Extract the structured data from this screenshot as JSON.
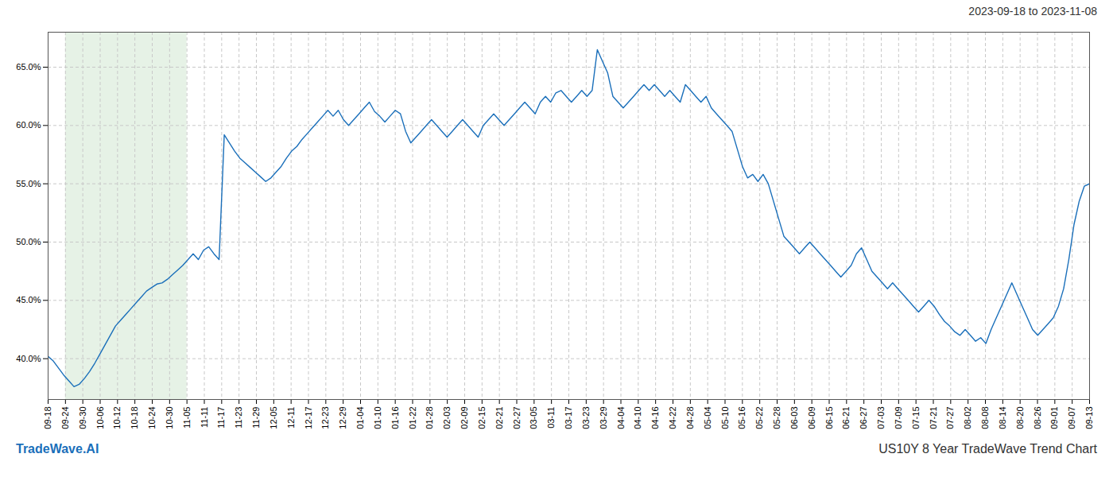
{
  "chart_data": {
    "type": "line",
    "title": "2023-09-18 to 2023-11-08",
    "footer_left": "TradeWave.AI",
    "footer_right": "US10Y 8 Year TradeWave Trend Chart",
    "color": "#1a6fba",
    "grid": true,
    "xlim": [
      0,
      201
    ],
    "xticks": [
      {
        "value": 0,
        "label": "09-18"
      },
      {
        "value": 3.35,
        "label": "09-24"
      },
      {
        "value": 6.7,
        "label": "09-30"
      },
      {
        "value": 10.05,
        "label": "10-06"
      },
      {
        "value": 13.4,
        "label": "10-12"
      },
      {
        "value": 16.75,
        "label": "10-18"
      },
      {
        "value": 20.1,
        "label": "10-24"
      },
      {
        "value": 23.45,
        "label": "10-30"
      },
      {
        "value": 26.8,
        "label": "11-05"
      },
      {
        "value": 30.15,
        "label": "11-11"
      },
      {
        "value": 33.5,
        "label": "11-17"
      },
      {
        "value": 36.85,
        "label": "11-23"
      },
      {
        "value": 40.2,
        "label": "11-29"
      },
      {
        "value": 43.55,
        "label": "12-05"
      },
      {
        "value": 46.9,
        "label": "12-11"
      },
      {
        "value": 50.25,
        "label": "12-17"
      },
      {
        "value": 53.6,
        "label": "12-23"
      },
      {
        "value": 56.95,
        "label": "12-29"
      },
      {
        "value": 60.3,
        "label": "01-04"
      },
      {
        "value": 63.65,
        "label": "01-10"
      },
      {
        "value": 67,
        "label": "01-16"
      },
      {
        "value": 70.35,
        "label": "01-22"
      },
      {
        "value": 73.7,
        "label": "01-28"
      },
      {
        "value": 77.05,
        "label": "02-03"
      },
      {
        "value": 80.4,
        "label": "02-09"
      },
      {
        "value": 83.75,
        "label": "02-15"
      },
      {
        "value": 87.1,
        "label": "02-21"
      },
      {
        "value": 90.45,
        "label": "02-27"
      },
      {
        "value": 93.8,
        "label": "03-05"
      },
      {
        "value": 97.15,
        "label": "03-11"
      },
      {
        "value": 100.5,
        "label": "03-17"
      },
      {
        "value": 103.85,
        "label": "03-23"
      },
      {
        "value": 107.2,
        "label": "03-29"
      },
      {
        "value": 110.55,
        "label": "04-04"
      },
      {
        "value": 113.9,
        "label": "04-10"
      },
      {
        "value": 117.25,
        "label": "04-16"
      },
      {
        "value": 120.6,
        "label": "04-22"
      },
      {
        "value": 123.95,
        "label": "04-28"
      },
      {
        "value": 127.3,
        "label": "05-04"
      },
      {
        "value": 130.65,
        "label": "05-10"
      },
      {
        "value": 134,
        "label": "05-16"
      },
      {
        "value": 137.35,
        "label": "05-22"
      },
      {
        "value": 140.7,
        "label": "05-28"
      },
      {
        "value": 144.05,
        "label": "06-03"
      },
      {
        "value": 147.4,
        "label": "06-09"
      },
      {
        "value": 150.75,
        "label": "06-15"
      },
      {
        "value": 154.1,
        "label": "06-21"
      },
      {
        "value": 157.45,
        "label": "06-27"
      },
      {
        "value": 160.8,
        "label": "07-03"
      },
      {
        "value": 164.15,
        "label": "07-09"
      },
      {
        "value": 167.5,
        "label": "07-15"
      },
      {
        "value": 170.85,
        "label": "07-21"
      },
      {
        "value": 174.2,
        "label": "07-27"
      },
      {
        "value": 177.55,
        "label": "08-02"
      },
      {
        "value": 180.9,
        "label": "08-08"
      },
      {
        "value": 184.25,
        "label": "08-14"
      },
      {
        "value": 187.6,
        "label": "08-20"
      },
      {
        "value": 190.95,
        "label": "08-26"
      },
      {
        "value": 194.3,
        "label": "09-01"
      },
      {
        "value": 197.65,
        "label": "09-07"
      },
      {
        "value": 201,
        "label": "09-13"
      }
    ],
    "ylim": [
      36.5,
      68
    ],
    "yticks": [
      {
        "value": 40.0,
        "label": "40.0%"
      },
      {
        "value": 45.0,
        "label": "45.0%"
      },
      {
        "value": 50.0,
        "label": "50.0%"
      },
      {
        "value": 55.0,
        "label": "55.0%"
      },
      {
        "value": 60.0,
        "label": "60.0%"
      },
      {
        "value": 65.0,
        "label": "65.0%"
      }
    ],
    "shaded_range": {
      "from": "09-24",
      "to": "11-05",
      "color": "#d6ead6"
    },
    "x": [
      0,
      1,
      2,
      3,
      4,
      5,
      6,
      7,
      8,
      9,
      10,
      11,
      12,
      13,
      14,
      15,
      16,
      17,
      18,
      19,
      20,
      21,
      22,
      23,
      24,
      25,
      26,
      27,
      28,
      29,
      30,
      31,
      32,
      33,
      34,
      35,
      36,
      37,
      38,
      39,
      40,
      41,
      42,
      43,
      44,
      45,
      46,
      47,
      48,
      49,
      50,
      51,
      52,
      53,
      54,
      55,
      56,
      57,
      58,
      59,
      60,
      61,
      62,
      63,
      64,
      65,
      66,
      67,
      68,
      69,
      70,
      71,
      72,
      73,
      74,
      75,
      76,
      77,
      78,
      79,
      80,
      81,
      82,
      83,
      84,
      85,
      86,
      87,
      88,
      89,
      90,
      91,
      92,
      93,
      94,
      95,
      96,
      97,
      98,
      99,
      100,
      101,
      102,
      103,
      104,
      105,
      106,
      107,
      108,
      109,
      110,
      111,
      112,
      113,
      114,
      115,
      116,
      117,
      118,
      119,
      120,
      121,
      122,
      123,
      124,
      125,
      126,
      127,
      128,
      129,
      130,
      131,
      132,
      133,
      134,
      135,
      136,
      137,
      138,
      139,
      140,
      141,
      142,
      143,
      144,
      145,
      146,
      147,
      148,
      149,
      150,
      151,
      152,
      153,
      154,
      155,
      156,
      157,
      158,
      159,
      160,
      161,
      162,
      163,
      164,
      165,
      166,
      167,
      168,
      169,
      170,
      171,
      172,
      173,
      174,
      175,
      176,
      177,
      178,
      179,
      180,
      181,
      182,
      183,
      184,
      185,
      186,
      187,
      188,
      189,
      190,
      191,
      192,
      193,
      194,
      195,
      196,
      197,
      198,
      199,
      200,
      201
    ],
    "values": [
      40.2,
      39.8,
      39.2,
      38.6,
      38.1,
      37.6,
      37.8,
      38.3,
      38.9,
      39.6,
      40.4,
      41.2,
      42.0,
      42.8,
      43.3,
      43.8,
      44.3,
      44.8,
      45.3,
      45.8,
      46.1,
      46.4,
      46.5,
      46.8,
      47.2,
      47.6,
      48.0,
      48.5,
      49.0,
      48.5,
      49.3,
      49.6,
      49.0,
      48.5,
      59.2,
      58.5,
      57.8,
      57.2,
      56.8,
      56.4,
      56.0,
      55.6,
      55.2,
      55.5,
      56.0,
      56.5,
      57.2,
      57.8,
      58.2,
      58.8,
      59.3,
      59.8,
      60.3,
      60.8,
      61.3,
      60.8,
      61.3,
      60.5,
      60.0,
      60.5,
      61.0,
      61.5,
      62.0,
      61.2,
      60.8,
      60.3,
      60.8,
      61.3,
      61.0,
      59.5,
      58.5,
      59.0,
      59.5,
      60.0,
      60.5,
      60.0,
      59.5,
      59.0,
      59.5,
      60.0,
      60.5,
      60.0,
      59.5,
      59.0,
      60.0,
      60.5,
      61.0,
      60.5,
      60.0,
      60.5,
      61.0,
      61.5,
      62.0,
      61.5,
      61.0,
      62.0,
      62.5,
      62.0,
      62.8,
      63.0,
      62.5,
      62.0,
      62.5,
      63.0,
      62.5,
      63.0,
      66.5,
      65.5,
      64.5,
      62.5,
      62.0,
      61.5,
      62.0,
      62.5,
      63.0,
      63.5,
      63.0,
      63.5,
      63.0,
      62.5,
      63.0,
      62.5,
      62.0,
      63.5,
      63.0,
      62.5,
      62.0,
      62.5,
      61.5,
      61.0,
      60.5,
      60.0,
      59.5,
      58.0,
      56.5,
      55.5,
      55.8,
      55.2,
      55.8,
      55.0,
      53.5,
      52.0,
      50.5,
      50.0,
      49.5,
      49.0,
      49.5,
      50.0,
      49.5,
      49.0,
      48.5,
      48.0,
      47.5,
      47.0,
      47.5,
      48.0,
      49.0,
      49.5,
      48.5,
      47.5,
      47.0,
      46.5,
      46.0,
      46.5,
      46.0,
      45.5,
      45.0,
      44.5,
      44.0,
      44.5,
      45.0,
      44.5,
      43.8,
      43.2,
      42.8,
      42.3,
      42.0,
      42.5,
      42.0,
      41.5,
      41.8,
      41.3,
      42.5,
      43.5,
      44.5,
      45.5,
      46.5,
      45.5,
      44.5,
      43.5,
      42.5,
      42.0,
      42.5,
      43.0,
      43.5,
      44.5,
      46.0,
      48.5,
      51.5,
      53.5,
      54.8,
      55.0
    ]
  }
}
